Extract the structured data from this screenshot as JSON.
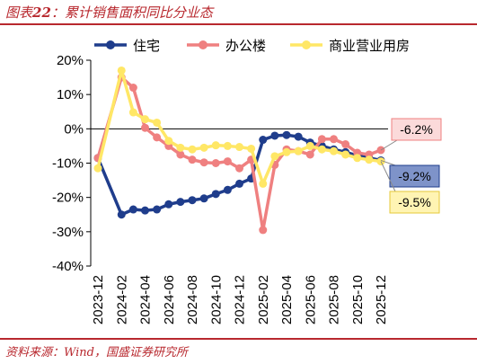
{
  "header": {
    "title_prefix": "图表",
    "title_num": "22",
    "title_text": "：累计销售面积同比分业态"
  },
  "footer": {
    "source": "资料来源：Wind，国盛证券研究所"
  },
  "colors": {
    "residential": "#1f3d8c",
    "office": "#ef8080",
    "commercial": "#ffe766",
    "accent": "#b8282e"
  },
  "chart_data": {
    "type": "line",
    "title": "累计销售面积同比分业态",
    "ylim": [
      -40,
      20
    ],
    "yticks": [
      20,
      10,
      0,
      -10,
      -20,
      -30,
      -40
    ],
    "ytick_labels": [
      "20%",
      "10%",
      "0%",
      "-10%",
      "-20%",
      "-30%",
      "-40%"
    ],
    "xtick_labels": [
      "2023-12",
      "2024-02",
      "2024-04",
      "2024-06",
      "2024-08",
      "2024-10",
      "2024-12",
      "2025-02",
      "2025-04",
      "2025-06",
      "2025-08",
      "2025-10",
      "2025-12"
    ],
    "x": [
      "2023-12",
      "2024-01",
      "2024-02",
      "2024-03",
      "2024-04",
      "2024-05",
      "2024-06",
      "2024-07",
      "2024-08",
      "2024-09",
      "2024-10",
      "2024-11",
      "2024-12",
      "2025-01",
      "2025-02",
      "2025-03",
      "2025-04",
      "2025-05",
      "2025-06",
      "2025-07",
      "2025-08",
      "2025-09",
      "2025-10",
      "2025-11",
      "2025-12"
    ],
    "legend_position": "top",
    "grid": false,
    "series": [
      {
        "key": "residential",
        "name": "住宅",
        "values": [
          -8.5,
          null,
          -25.0,
          -23.5,
          -23.8,
          -23.5,
          -22.0,
          -21.3,
          -20.8,
          -20.3,
          -19.0,
          -17.8,
          -16.0,
          -14.5,
          -3.2,
          -2.0,
          -1.8,
          -2.3,
          -4.0,
          -5.0,
          -6.0,
          -6.8,
          -7.8,
          -8.5,
          -9.2
        ],
        "end_label": "-9.2%"
      },
      {
        "key": "office",
        "name": "办公楼",
        "values": [
          -8.5,
          null,
          15.0,
          12.0,
          0.3,
          -2.5,
          -5.0,
          -7.5,
          -9.0,
          -9.8,
          -10.0,
          -9.5,
          -11.5,
          -9.0,
          -29.5,
          -10.5,
          -6.0,
          -6.5,
          -7.5,
          -3.0,
          -3.0,
          -4.5,
          -7.0,
          -7.5,
          -6.2
        ],
        "end_label": "-6.2%"
      },
      {
        "key": "commercial",
        "name": "商业营业用房",
        "values": [
          -11.5,
          null,
          17.0,
          4.8,
          2.8,
          1.8,
          -3.5,
          -5.5,
          -6.0,
          -5.5,
          -4.8,
          -5.0,
          -5.3,
          -5.8,
          -16.0,
          -8.0,
          -6.8,
          -6.5,
          -5.0,
          -6.0,
          -6.5,
          -7.5,
          -8.5,
          -9.0,
          -9.5
        ],
        "end_label": "-9.5%"
      }
    ]
  }
}
